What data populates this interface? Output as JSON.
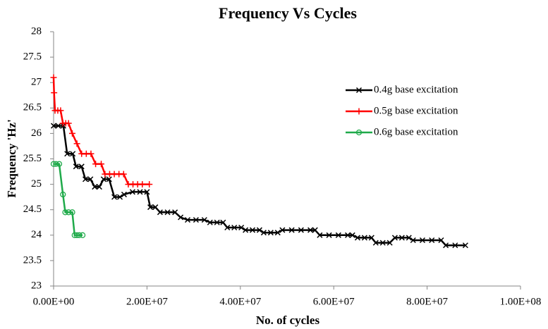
{
  "chart_data": {
    "type": "line",
    "title": "Frequency Vs Cycles",
    "x_label": "No. of cycles",
    "y_label": "Frequency 'Hz'",
    "xlim": [
      0,
      100000000
    ],
    "xticks": [
      {
        "value": 0,
        "label": "0.00E+00"
      },
      {
        "value": 20000000,
        "label": "2.00E+07"
      },
      {
        "value": 40000000,
        "label": "4.00E+07"
      },
      {
        "value": 60000000,
        "label": "6.00E+07"
      },
      {
        "value": 80000000,
        "label": "8.00E+07"
      },
      {
        "value": 100000000,
        "label": "1.00E+08"
      }
    ],
    "ylim": [
      23,
      28
    ],
    "yticks": [
      23,
      23.5,
      24,
      24.5,
      25,
      25.5,
      26,
      26.5,
      27,
      27.5,
      28
    ],
    "grid": false,
    "legend": "right",
    "series": [
      {
        "name": "0.4g base excitation",
        "color": "#000000",
        "marker": "x",
        "x": [
          0,
          1000000,
          2100000,
          2900000,
          4100000,
          4800000,
          6000000,
          6800000,
          7900000,
          8800000,
          9800000,
          10700000,
          11900000,
          13000000,
          14200000,
          15100000,
          16900000,
          18500000,
          20000000,
          20700000,
          21800000,
          22800000,
          24400000,
          26000000,
          27200000,
          28700000,
          30500000,
          32300000,
          33500000,
          35000000,
          36300000,
          37200000,
          38700000,
          40200000,
          41100000,
          42600000,
          44100000,
          45000000,
          46500000,
          48000000,
          49000000,
          51000000,
          53000000,
          55000000,
          56000000,
          57000000,
          59000000,
          61000000,
          63000000,
          64000000,
          65100000,
          66600000,
          68100000,
          69000000,
          70500000,
          72000000,
          73100000,
          74600000,
          76100000,
          77000000,
          79000000,
          81000000,
          83000000,
          84000000,
          86000000,
          88200000
        ],
        "values": [
          26.15,
          26.15,
          26.15,
          25.6,
          25.6,
          25.35,
          25.35,
          25.1,
          25.1,
          24.95,
          24.95,
          25.1,
          25.1,
          24.75,
          24.75,
          24.8,
          24.85,
          24.85,
          24.85,
          24.55,
          24.55,
          24.45,
          24.45,
          24.45,
          24.35,
          24.3,
          24.3,
          24.3,
          24.25,
          24.25,
          24.25,
          24.15,
          24.15,
          24.15,
          24.1,
          24.1,
          24.1,
          24.05,
          24.05,
          24.05,
          24.1,
          24.1,
          24.1,
          24.1,
          24.1,
          24.0,
          24.0,
          24.0,
          24.0,
          24.0,
          23.95,
          23.95,
          23.95,
          23.85,
          23.85,
          23.85,
          23.95,
          23.95,
          23.95,
          23.9,
          23.9,
          23.9,
          23.9,
          23.8,
          23.8,
          23.8
        ]
      },
      {
        "name": "0.5g base excitation",
        "color": "#ff0000",
        "marker": "+",
        "x": [
          0,
          100000,
          300000,
          900000,
          1500000,
          2000000,
          2600000,
          3200000,
          4000000,
          5000000,
          6000000,
          7000000,
          8000000,
          9000000,
          10200000,
          11000000,
          12000000,
          13000000,
          14000000,
          15000000,
          16000000,
          17000000,
          18000000,
          19000000,
          20500000
        ],
        "values": [
          27.1,
          26.8,
          26.45,
          26.45,
          26.45,
          26.2,
          26.2,
          26.2,
          26.0,
          25.8,
          25.6,
          25.6,
          25.6,
          25.4,
          25.4,
          25.2,
          25.2,
          25.2,
          25.2,
          25.2,
          25.0,
          25.0,
          25.0,
          25.0,
          25.0
        ]
      },
      {
        "name": "0.6g base excitation",
        "color": "#1faa4a",
        "marker": "o",
        "x": [
          0,
          500000,
          1200000,
          2000000,
          2500000,
          3200000,
          4000000,
          4500000,
          5000000,
          5500000,
          6200000
        ],
        "values": [
          25.4,
          25.4,
          25.4,
          24.8,
          24.45,
          24.45,
          24.45,
          24.0,
          24.0,
          24.0,
          24.0
        ]
      }
    ]
  }
}
